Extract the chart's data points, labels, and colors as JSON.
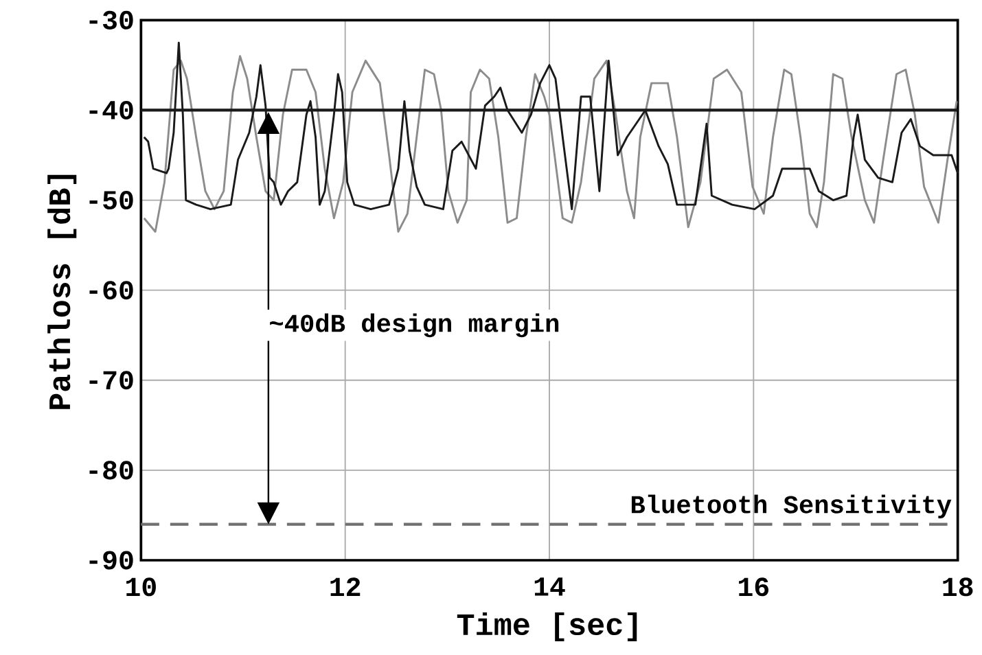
{
  "chart_data": {
    "type": "line",
    "xlabel": "Time [sec]",
    "ylabel": "Pathloss [dB]",
    "xlim": [
      10,
      18
    ],
    "ylim": [
      -90,
      -30
    ],
    "xticks": [
      10,
      12,
      14,
      16,
      18
    ],
    "yticks": [
      -90,
      -80,
      -70,
      -60,
      -50,
      -40,
      -30
    ],
    "grid": true,
    "line_style": "solid",
    "marker": "none",
    "series": [
      {
        "color": "#8c8c8c",
        "x": [
          10.03,
          10.14,
          10.23,
          10.32,
          10.39,
          10.45,
          10.54,
          10.63,
          10.72,
          10.81,
          10.9,
          10.97,
          11.04,
          11.13,
          11.22,
          11.3,
          11.39,
          11.48,
          11.62,
          11.71,
          11.8,
          11.89,
          11.98,
          12.07,
          12.2,
          12.34,
          12.43,
          12.52,
          12.61,
          12.7,
          12.78,
          12.87,
          12.94,
          13.01,
          13.1,
          13.19,
          13.23,
          13.32,
          13.41,
          13.5,
          13.59,
          13.68,
          13.77,
          13.86,
          13.95,
          14.0,
          14.13,
          14.22,
          14.31,
          14.44,
          14.56,
          14.65,
          14.76,
          14.83,
          14.89,
          15.0,
          15.16,
          15.25,
          15.36,
          15.48,
          15.61,
          15.74,
          15.88,
          15.99,
          16.1,
          16.19,
          16.3,
          16.37,
          16.46,
          16.55,
          16.62,
          16.69,
          16.78,
          16.87,
          16.96,
          17.09,
          17.18,
          17.27,
          17.4,
          17.49,
          17.58,
          17.67,
          17.81,
          17.9,
          17.99
        ],
        "values": [
          -52,
          -53.5,
          -48,
          -35.5,
          -34.5,
          -36.5,
          -43,
          -49,
          -51,
          -49,
          -38,
          -34,
          -36.5,
          -43,
          -49,
          -50,
          -40.5,
          -35.5,
          -35.5,
          -38,
          -46.5,
          -52,
          -48,
          -38,
          -34.5,
          -37,
          -45,
          -53.5,
          -51.5,
          -43,
          -35.5,
          -36,
          -40,
          -49,
          -52.5,
          -50,
          -38,
          -35.5,
          -36.5,
          -43,
          -52.5,
          -52,
          -43,
          -36,
          -38.5,
          -40.5,
          -52,
          -52.5,
          -48,
          -36.5,
          -34.5,
          -40.5,
          -49,
          -52,
          -43,
          -37,
          -37,
          -43,
          -53,
          -48,
          -36.5,
          -35.5,
          -38,
          -48.5,
          -51.5,
          -43,
          -35.5,
          -36,
          -43,
          -51.5,
          -53,
          -48,
          -36,
          -36.5,
          -43,
          -50,
          -52.5,
          -45.5,
          -36,
          -35.5,
          -40.5,
          -48.5,
          -52.5,
          -45.5,
          -39
        ]
      },
      {
        "color": "#1a1a1a",
        "x": [
          10.03,
          10.07,
          10.12,
          10.25,
          10.27,
          10.32,
          10.37,
          10.41,
          10.44,
          10.54,
          10.68,
          10.88,
          10.95,
          11.06,
          11.13,
          11.17,
          11.22,
          11.26,
          11.3,
          11.37,
          11.44,
          11.53,
          11.62,
          11.66,
          11.71,
          11.75,
          11.8,
          11.89,
          11.93,
          11.97,
          12.02,
          12.09,
          12.25,
          12.43,
          12.52,
          12.58,
          12.63,
          12.7,
          12.78,
          12.96,
          13.05,
          13.14,
          13.28,
          13.37,
          13.46,
          13.52,
          13.59,
          13.73,
          13.82,
          13.91,
          14.0,
          14.06,
          14.13,
          14.22,
          14.31,
          14.4,
          14.49,
          14.58,
          14.67,
          14.76,
          14.94,
          15.07,
          15.16,
          15.25,
          15.43,
          15.54,
          15.59,
          15.79,
          16.01,
          16.19,
          16.28,
          16.55,
          16.64,
          16.78,
          16.91,
          16.98,
          17.02,
          17.09,
          17.22,
          17.36,
          17.45,
          17.54,
          17.63,
          17.76,
          17.94,
          18.0
        ],
        "values": [
          -43,
          -43.5,
          -46.5,
          -47,
          -46.5,
          -42.5,
          -32.5,
          -40.5,
          -50,
          -50.5,
          -51,
          -50.5,
          -45.5,
          -42.5,
          -38.5,
          -35,
          -39.5,
          -47.5,
          -48,
          -50.5,
          -49,
          -48,
          -40.5,
          -39,
          -43,
          -50.5,
          -49,
          -40.5,
          -36,
          -38,
          -48,
          -50.5,
          -51,
          -50.5,
          -46.5,
          -39,
          -44.5,
          -48.5,
          -50.5,
          -51,
          -44.5,
          -43.5,
          -46.5,
          -39.5,
          -38.5,
          -37.5,
          -40,
          -42.5,
          -40.5,
          -37,
          -35,
          -36.5,
          -43,
          -51,
          -38.5,
          -38.5,
          -49,
          -34.5,
          -45,
          -43,
          -40,
          -44,
          -46,
          -50.5,
          -50.5,
          -41.5,
          -49.5,
          -50.5,
          -51,
          -49.5,
          -46.5,
          -46.5,
          -49,
          -50,
          -49.5,
          -43,
          -40.5,
          -45.5,
          -47.5,
          -48,
          -42.5,
          -41,
          -44,
          -45,
          -45,
          -47
        ]
      }
    ],
    "ref_lines": [
      {
        "axis": "y",
        "value": -40,
        "color": "#1a1a1a",
        "line_style": "solid"
      },
      {
        "axis": "y",
        "value": -86,
        "label": "Bluetooth Sensitivity",
        "color": "#707070",
        "line_style": "dashed"
      }
    ],
    "annotations": [
      "~40dB design margin"
    ]
  }
}
